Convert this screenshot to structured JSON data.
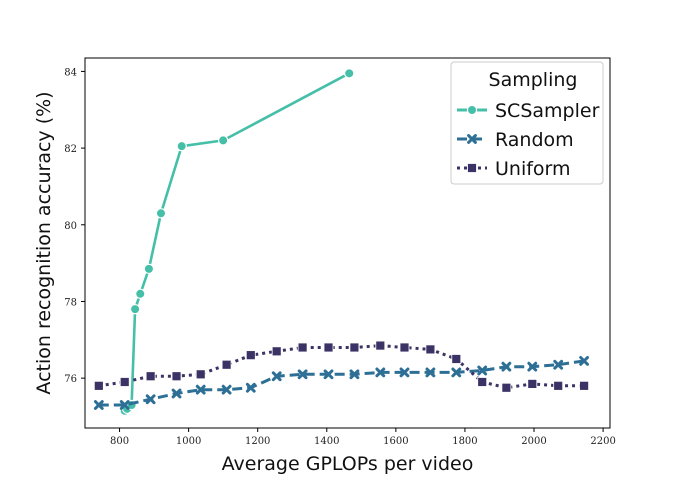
{
  "chart_data": {
    "type": "line",
    "title": "",
    "xlabel": "Average GPLOPs per video",
    "ylabel": "Action recognition accuracy (%)",
    "xlim": [
      700,
      2220
    ],
    "ylim": [
      74.7,
      84.35
    ],
    "xticks": [
      800,
      1000,
      1200,
      1400,
      1600,
      1800,
      2000,
      2200
    ],
    "yticks": [
      76,
      78,
      80,
      82,
      84
    ],
    "grid": false,
    "legend": {
      "title": "Sampling",
      "placement": "top-right"
    },
    "series": [
      {
        "name": "SCSampler",
        "color": "#46bfa8",
        "marker": "circle",
        "linestyle": "solid",
        "x": [
          815,
          822,
          835,
          845,
          860,
          885,
          920,
          980,
          1100,
          1465
        ],
        "y": [
          75.15,
          75.2,
          75.3,
          77.8,
          78.2,
          78.85,
          80.3,
          82.05,
          82.2,
          83.95
        ]
      },
      {
        "name": "Random",
        "color": "#2e6f96",
        "marker": "x",
        "linestyle": "dashed",
        "x": [
          740,
          815,
          890,
          965,
          1035,
          1110,
          1180,
          1255,
          1330,
          1405,
          1480,
          1555,
          1625,
          1700,
          1775,
          1850,
          1920,
          1995,
          2070,
          2145
        ],
        "y": [
          75.3,
          75.3,
          75.45,
          75.6,
          75.7,
          75.7,
          75.75,
          76.05,
          76.1,
          76.1,
          76.1,
          76.15,
          76.15,
          76.15,
          76.15,
          76.2,
          76.3,
          76.3,
          76.35,
          76.45
        ]
      },
      {
        "name": "Uniform",
        "color": "#3b3366",
        "marker": "square",
        "linestyle": "dotted",
        "x": [
          740,
          815,
          890,
          965,
          1035,
          1110,
          1180,
          1255,
          1330,
          1405,
          1480,
          1555,
          1625,
          1700,
          1775,
          1850,
          1920,
          1995,
          2070,
          2145
        ],
        "y": [
          75.8,
          75.9,
          76.05,
          76.05,
          76.1,
          76.35,
          76.6,
          76.7,
          76.8,
          76.8,
          76.8,
          76.85,
          76.8,
          76.75,
          76.5,
          75.9,
          75.75,
          75.85,
          75.8,
          75.8
        ]
      }
    ]
  }
}
